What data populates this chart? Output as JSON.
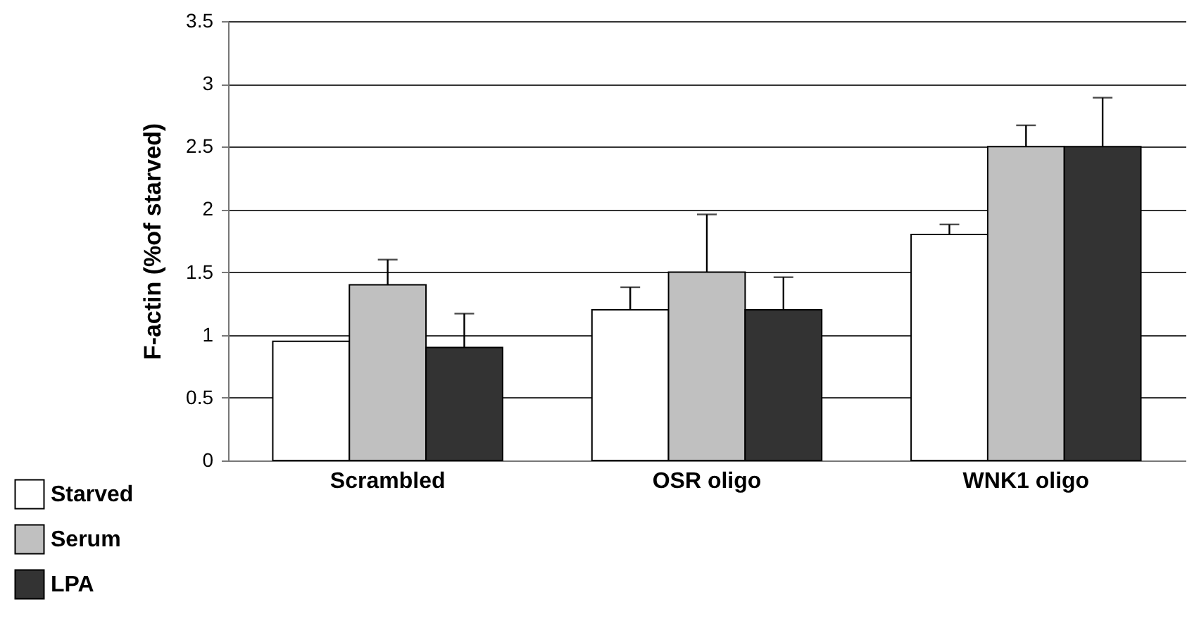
{
  "chart_data": {
    "type": "bar",
    "ylabel": "F-actin (%of starved)",
    "categories": [
      "Scrambled",
      "OSR oligo",
      "WNK1 oligo"
    ],
    "series": [
      {
        "name": "Starved",
        "color": "#ffffff",
        "values": [
          0.95,
          1.2,
          1.8
        ],
        "errors": [
          null,
          [
            1.2,
            1.38
          ],
          [
            1.8,
            1.88
          ]
        ]
      },
      {
        "name": "Serum",
        "color": "#c0c0c0",
        "values": [
          1.4,
          1.5,
          2.5
        ],
        "errors": [
          [
            1.4,
            1.6
          ],
          [
            1.5,
            1.96
          ],
          [
            2.5,
            2.67
          ]
        ]
      },
      {
        "name": "LPA",
        "color": "#333333",
        "values": [
          0.9,
          1.2,
          2.5
        ],
        "errors": [
          [
            0.9,
            1.17
          ],
          [
            1.2,
            1.46
          ],
          [
            2.5,
            2.89
          ]
        ]
      }
    ],
    "ylim": [
      0,
      3.5
    ],
    "yticks": [
      0,
      0.5,
      1,
      1.5,
      2,
      2.5,
      3,
      3.5
    ],
    "grid": "y",
    "legend": "bottom left"
  }
}
